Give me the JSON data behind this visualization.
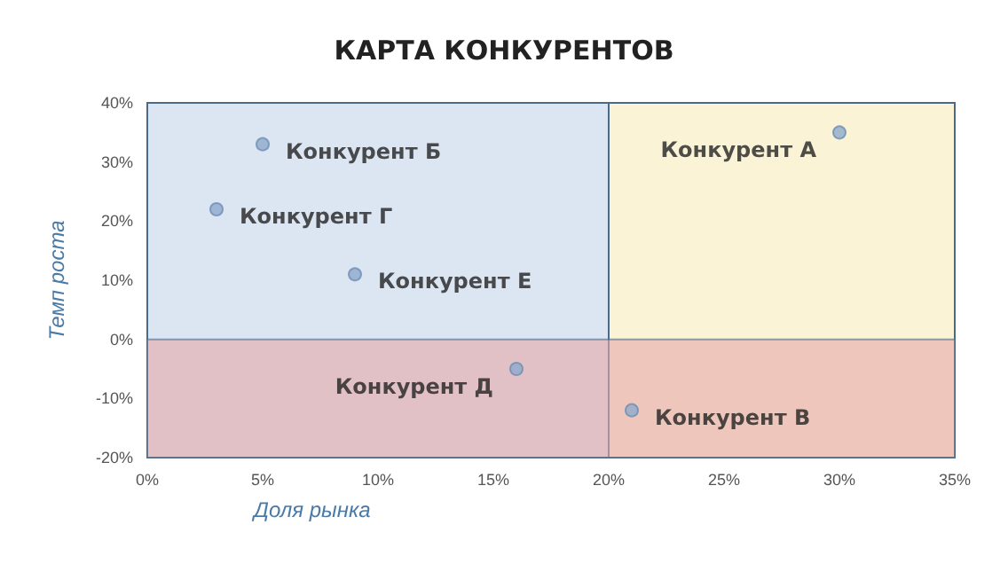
{
  "chart_data": {
    "type": "scatter",
    "title": "КАРТА КОНКУРЕНТОВ",
    "xlabel": "Доля рынка",
    "ylabel": "Темп роста",
    "xlim": [
      0,
      35
    ],
    "ylim": [
      -20,
      40
    ],
    "xticks": [
      {
        "value": 0,
        "label": "0%"
      },
      {
        "value": 5,
        "label": "5%"
      },
      {
        "value": 10,
        "label": "10%"
      },
      {
        "value": 15,
        "label": "15%"
      },
      {
        "value": 20,
        "label": "20%"
      },
      {
        "value": 25,
        "label": "25%"
      },
      {
        "value": 30,
        "label": "30%"
      },
      {
        "value": 35,
        "label": "35%"
      }
    ],
    "yticks": [
      {
        "value": -20,
        "label": "-20%"
      },
      {
        "value": -10,
        "label": "-10%"
      },
      {
        "value": 0,
        "label": "0%"
      },
      {
        "value": 10,
        "label": "10%"
      },
      {
        "value": 20,
        "label": "20%"
      },
      {
        "value": 30,
        "label": "30%"
      },
      {
        "value": 40,
        "label": "40%"
      }
    ],
    "grid": false,
    "legend": false,
    "marker": "circle",
    "bands": [
      {
        "axis": "x",
        "from": 0,
        "to": 20,
        "color": "#dce6f2"
      },
      {
        "axis": "x",
        "from": 20,
        "to": 35,
        "color": "#fbf3d6"
      },
      {
        "axis": "y",
        "from": -20,
        "to": 0,
        "color": "#e6a8a8"
      }
    ],
    "series": [
      {
        "name": "Конкурент А",
        "color": "#8eaacc",
        "x": [
          30
        ],
        "values": [
          35
        ]
      },
      {
        "name": "Конкурент Б",
        "color": "#8eaacc",
        "x": [
          5
        ],
        "values": [
          33
        ]
      },
      {
        "name": "Конкурент Г",
        "color": "#8eaacc",
        "x": [
          3
        ],
        "values": [
          22
        ]
      },
      {
        "name": "Конкурент Е",
        "color": "#8eaacc",
        "x": [
          9
        ],
        "values": [
          11
        ]
      },
      {
        "name": "Конкурент Д",
        "color": "#8eaacc",
        "x": [
          16
        ],
        "values": [
          -5
        ]
      },
      {
        "name": "Конкурент В",
        "color": "#8eaacc",
        "x": [
          21
        ],
        "values": [
          -12
        ]
      }
    ]
  }
}
